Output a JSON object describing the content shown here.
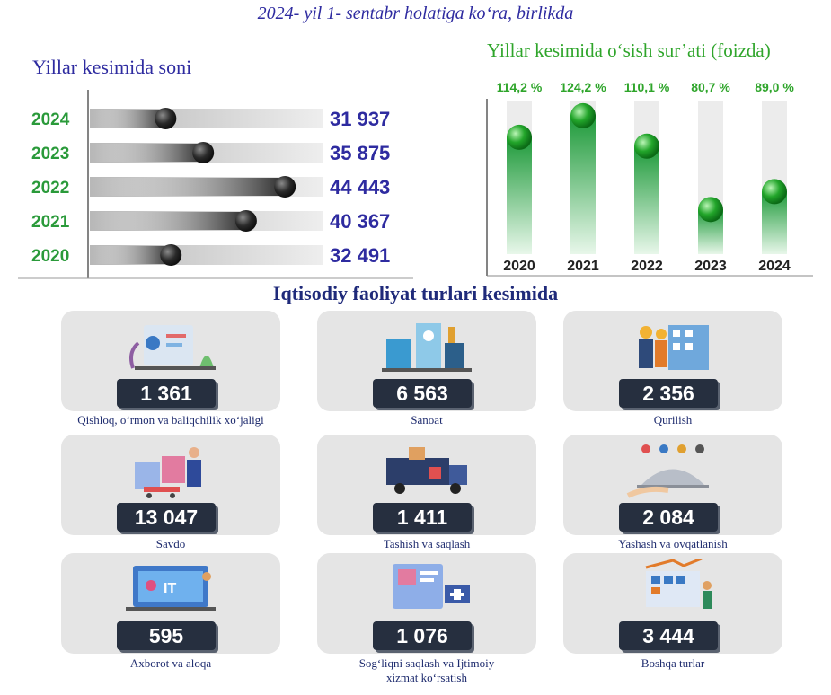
{
  "header": {
    "title": "2024- yil 1- sentabr holatiga ko‘ra, birlikda"
  },
  "left_title": "Yillar kesimida soni",
  "right_title": "Yillar kesimida o‘sish sur’ati (foizda)",
  "section_title": "Iqtisodiy faoliyat turlari kesimida",
  "colors": {
    "blue": "#2e2ba0",
    "green": "#2fa52b",
    "navy": "#262f3f"
  },
  "chart_data": [
    {
      "type": "bar",
      "title": "Yillar kesimida soni",
      "orientation": "horizontal",
      "categories": [
        "2024",
        "2023",
        "2022",
        "2021",
        "2020"
      ],
      "values": [
        31937,
        35875,
        44443,
        40367,
        32491
      ],
      "value_labels": [
        "31 937",
        "35 875",
        "44 443",
        "40 367",
        "32 491"
      ],
      "xlim": [
        24000,
        48000
      ]
    },
    {
      "type": "bar",
      "title": "Yillar kesimida o‘sish sur’ati (foizda)",
      "categories": [
        "2020",
        "2021",
        "2022",
        "2023",
        "2024"
      ],
      "values": [
        114.2,
        124.2,
        110.1,
        80.7,
        89.0
      ],
      "value_labels": [
        "114,2 %",
        "124,2 %",
        "110,1 %",
        "80,7 %",
        "89,0 %"
      ],
      "ylim": [
        60,
        130
      ]
    }
  ],
  "sectors": [
    {
      "value": "1 361",
      "label": "Qishloq, o‘rmon va baliqchilik xo‘jaligi",
      "icon": "agriculture-icon"
    },
    {
      "value": "6 563",
      "label": "Sanoat",
      "icon": "factory-icon"
    },
    {
      "value": "2 356",
      "label": "Qurilish",
      "icon": "construction-icon"
    },
    {
      "value": "13 047",
      "label": "Savdo",
      "icon": "shopping-icon"
    },
    {
      "value": "1 411",
      "label": "Tashish va saqlash",
      "icon": "transport-icon"
    },
    {
      "value": "2 084",
      "label": "Yashash va ovqatlanish",
      "icon": "food-service-icon"
    },
    {
      "value": "595",
      "label": "Axborot va aloqa",
      "icon": "it-icon"
    },
    {
      "value": "1 076",
      "label": "Sog‘liqni saqlash va Ijtimoiy xizmat ko‘rsatish",
      "icon": "healthcare-icon"
    },
    {
      "value": "3 444",
      "label": "Boshqa turlar",
      "icon": "other-services-icon"
    }
  ]
}
